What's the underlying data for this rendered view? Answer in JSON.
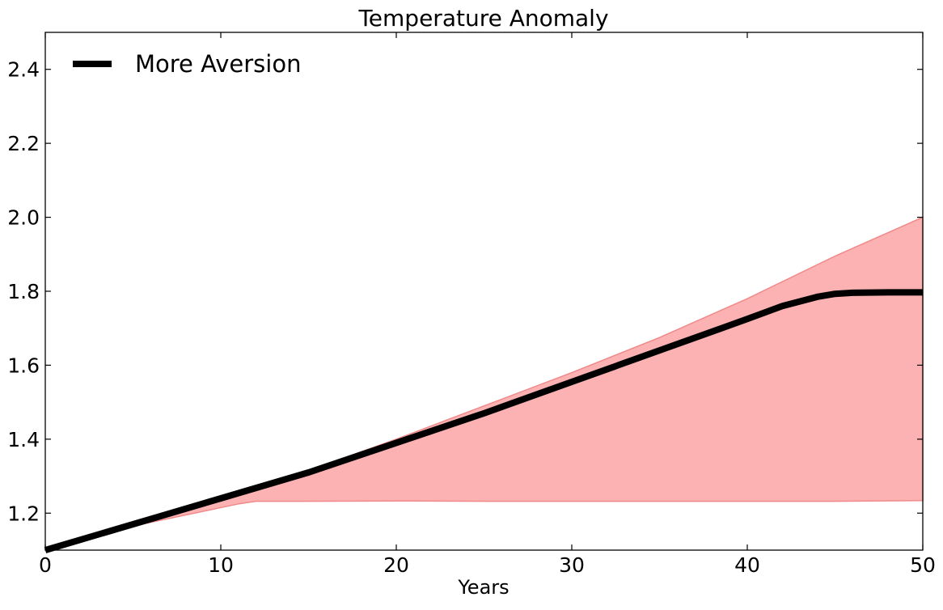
{
  "chart_data": {
    "type": "line",
    "title": "Temperature Anomaly",
    "xlabel": "Years",
    "ylabel": "",
    "xlim": [
      0,
      50
    ],
    "ylim": [
      1.1,
      2.5
    ],
    "xticks": [
      0,
      10,
      20,
      30,
      40,
      50
    ],
    "yticks": [
      1.2,
      1.4,
      1.6,
      1.8,
      2.0,
      2.2,
      2.4
    ],
    "xtick_labels": [
      "0",
      "10",
      "20",
      "30",
      "40",
      "50"
    ],
    "ytick_labels": [
      "1.2",
      "1.4",
      "1.6",
      "1.8",
      "2.0",
      "2.2",
      "2.4"
    ],
    "grid": false,
    "legend_position": "top-left",
    "series": [
      {
        "name": "More Aversion",
        "color": "#000000",
        "x": [
          0,
          5,
          10,
          15,
          20,
          25,
          30,
          35,
          40,
          42,
          44,
          45,
          46,
          48,
          50
        ],
        "y": [
          1.1,
          1.17,
          1.24,
          1.31,
          1.39,
          1.47,
          1.555,
          1.64,
          1.725,
          1.76,
          1.785,
          1.793,
          1.796,
          1.797,
          1.797
        ]
      }
    ],
    "band": {
      "color": "#fcb2b2",
      "edge_color": "#f08a8a",
      "x": [
        0,
        5,
        10,
        11,
        12,
        15,
        20,
        25,
        30,
        35,
        40,
        45,
        50
      ],
      "upper": [
        1.1,
        1.17,
        1.24,
        1.25,
        1.265,
        1.315,
        1.4,
        1.49,
        1.58,
        1.675,
        1.78,
        1.895,
        2.0
      ],
      "lower": [
        1.1,
        1.165,
        1.215,
        1.225,
        1.232,
        1.232,
        1.233,
        1.232,
        1.232,
        1.232,
        1.232,
        1.232,
        1.234
      ]
    }
  }
}
